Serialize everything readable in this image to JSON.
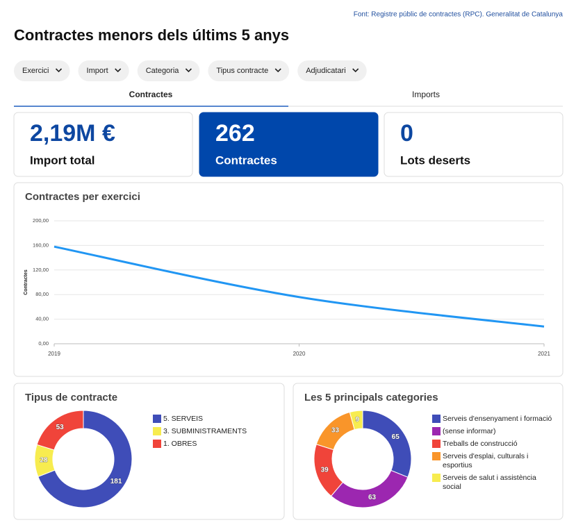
{
  "source": "Font: Registre públic de contractes (RPC). Generalitat de Catalunya",
  "title": "Contractes menors dels últims 5 anys",
  "filters": [
    "Exercici",
    "Import",
    "Categoria",
    "Tipus contracte",
    "Adjudicatari"
  ],
  "tabs": [
    "Contractes",
    "Imports"
  ],
  "kpis": [
    {
      "value": "2,19M €",
      "label": "Import total"
    },
    {
      "value": "262",
      "label": "Contractes"
    },
    {
      "value": "0",
      "label": "Lots deserts"
    }
  ],
  "chart_data": [
    {
      "type": "line",
      "title": "Contractes per exercici",
      "y_label": "Contractes",
      "color": "#2196f3",
      "x": [
        2019,
        2020,
        2021
      ],
      "values": [
        158,
        76,
        28
      ],
      "xlim": [
        2019,
        2021
      ],
      "xticks": [
        2019,
        2020,
        2021
      ],
      "ylim": [
        0,
        200
      ],
      "yticks": [
        {
          "value": 0,
          "label": "0,00"
        },
        {
          "value": 40,
          "label": "40,00"
        },
        {
          "value": 80,
          "label": "80,00"
        },
        {
          "value": 120,
          "label": "120,00"
        },
        {
          "value": 160,
          "label": "160,00"
        },
        {
          "value": 200,
          "label": "200,00"
        }
      ],
      "grid": true
    },
    {
      "type": "donut",
      "title": "Tipus de contracte",
      "categories": [
        "5. SERVEIS",
        "3. SUBMINISTRAMENTS",
        "1. OBRES"
      ],
      "values": [
        181,
        28,
        53
      ],
      "colors": [
        "#3f4db8",
        "#f7ec4f",
        "#f0443a"
      ]
    },
    {
      "type": "donut",
      "title": "Les 5 principals categories",
      "categories": [
        "Serveis d'ensenyament i formació",
        "(sense informar)",
        "Treballs de construcció",
        "Serveis d'esplai, culturals i esportius",
        "Serveis de salut i assistència social"
      ],
      "values": [
        65,
        63,
        39,
        33,
        9
      ],
      "colors": [
        "#3f4db8",
        "#9c27b0",
        "#f0443a",
        "#f9952a",
        "#f7ec4f"
      ]
    }
  ]
}
